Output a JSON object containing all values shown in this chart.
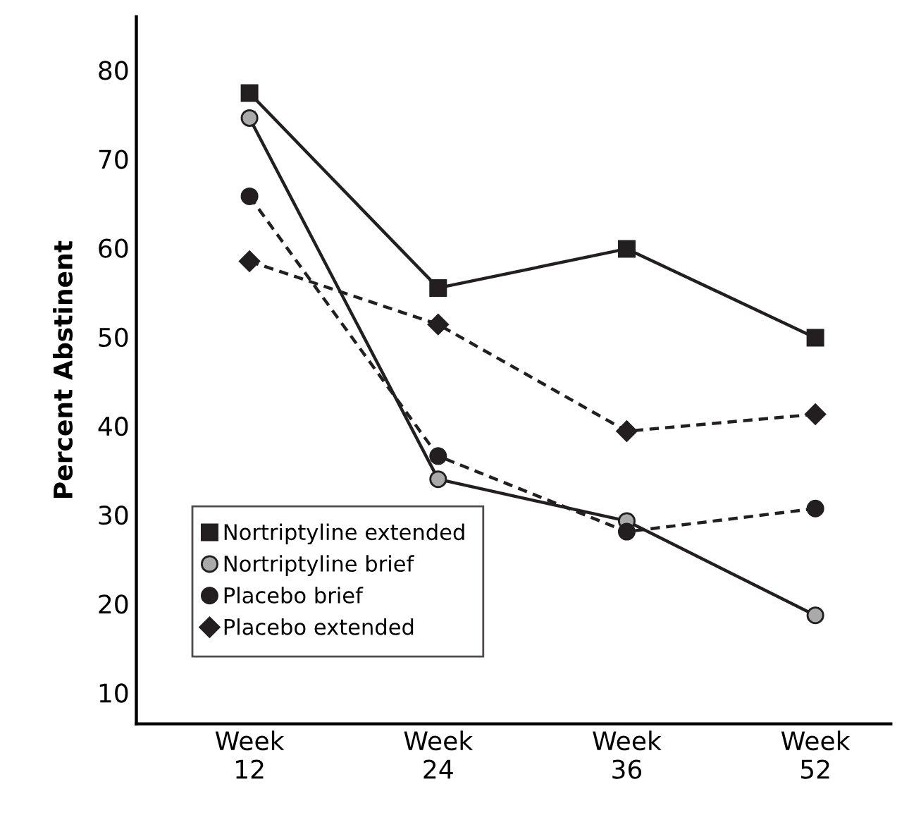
{
  "chart_data": {
    "type": "line",
    "ylabel": "Percent Abstinent",
    "categories": [
      "Week\n12",
      "Week\n24",
      "Week\n36",
      "Week\n52"
    ],
    "ylim": [
      6.5,
      86
    ],
    "yticks": [
      10,
      20,
      30,
      40,
      50,
      60,
      70,
      80
    ],
    "grid": false,
    "legend": "bottom left",
    "series": [
      {
        "name": "Nortriptyline extended",
        "color": "#231f20",
        "marker": "square",
        "line_style": "solid",
        "values": [
          77.4,
          55.5,
          59.9,
          49.9
        ]
      },
      {
        "name": "Nortriptyline brief",
        "color": "#aaaaaa",
        "marker": "circle",
        "line_style": "solid",
        "values": [
          74.6,
          34,
          29.3,
          18.7
        ]
      },
      {
        "name": "Placebo brief",
        "color": "#231f20",
        "marker": "circle",
        "line_style": "dashed",
        "values": [
          65.8,
          36.6,
          28.1,
          30.7
        ]
      },
      {
        "name": "Placebo extended",
        "color": "#231f20",
        "marker": "diamond",
        "line_style": "dashed",
        "values": [
          58.5,
          51.4,
          39.4,
          41.3
        ]
      }
    ]
  }
}
